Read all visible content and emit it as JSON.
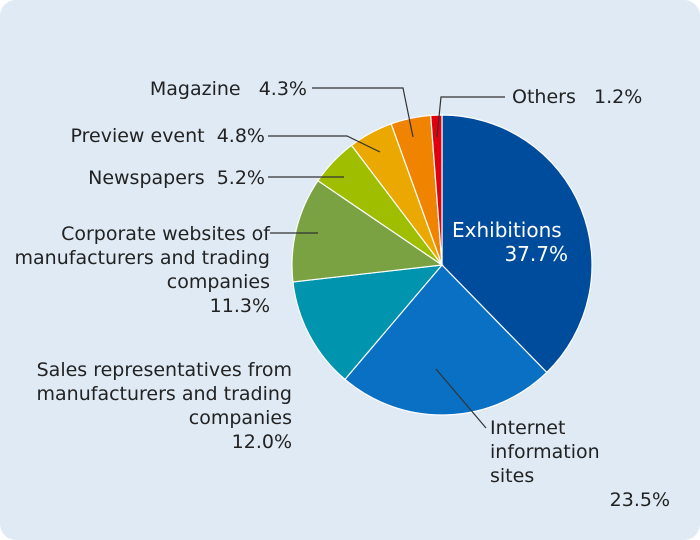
{
  "chart_data": {
    "type": "pie",
    "title": "",
    "start": "top",
    "direction": "clockwise",
    "slices": [
      {
        "label": "Exhibitions",
        "value": 37.7,
        "display": "37.7%",
        "color": "#004c9c"
      },
      {
        "label": "Internet information sites",
        "value": 23.5,
        "display": "23.5%",
        "color": "#0a70c4"
      },
      {
        "label": "Sales representatives from manufacturers and trading companies",
        "value": 12.0,
        "display": "12.0%",
        "color": "#0094ae"
      },
      {
        "label": "Corporate websites of manufacturers and trading companies",
        "value": 11.3,
        "display": "11.3%",
        "color": "#7aa142"
      },
      {
        "label": "Newspapers",
        "value": 5.2,
        "display": "5.2%",
        "color": "#9fbe00"
      },
      {
        "label": "Preview event",
        "value": 4.8,
        "display": "4.8%",
        "color": "#eaa800"
      },
      {
        "label": "Magazine",
        "value": 4.3,
        "display": "4.3%",
        "color": "#f08300"
      },
      {
        "label": "Others",
        "value": 1.2,
        "display": "1.2%",
        "color": "#e0000f"
      }
    ]
  }
}
